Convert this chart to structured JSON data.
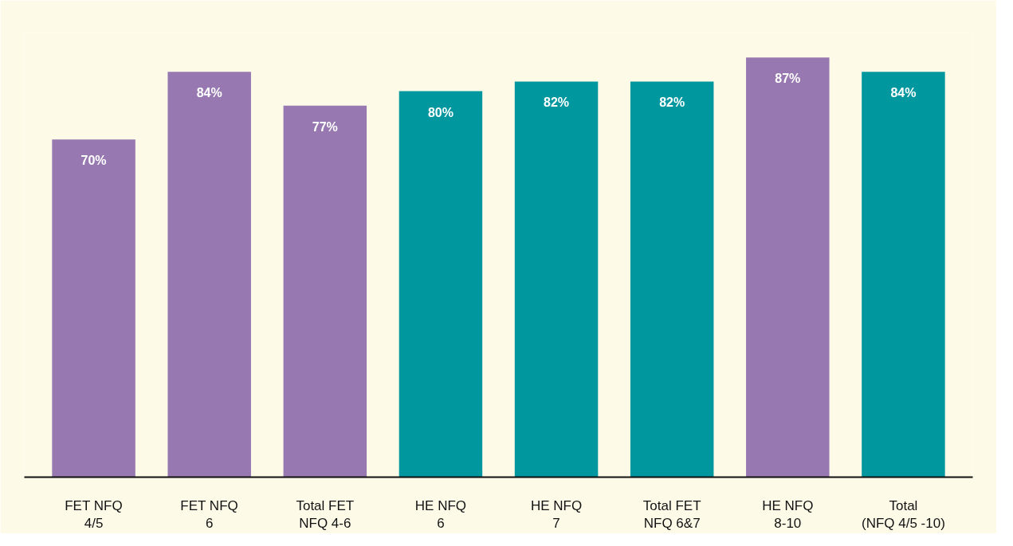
{
  "chart_data": {
    "type": "bar",
    "categories": [
      "FET NFQ\n4/5",
      "FET NFQ\n6",
      "Total FET\nNFQ 4-6",
      "HE NFQ\n6",
      "HE NFQ\n7",
      "Total FET\nNFQ 6&7",
      "HE NFQ\n8-10",
      "Total\n(NFQ 4/5 -10)"
    ],
    "values": [
      70,
      84,
      77,
      80,
      82,
      82,
      87,
      84
    ],
    "colors": [
      "#9778b0",
      "#9778b0",
      "#9778b0",
      "#00979f",
      "#00979f",
      "#00979f",
      "#9778b0",
      "#00979f"
    ],
    "value_labels": [
      "70%",
      "84%",
      "77%",
      "80%",
      "82%",
      "82%",
      "87%",
      "84%"
    ]
  }
}
